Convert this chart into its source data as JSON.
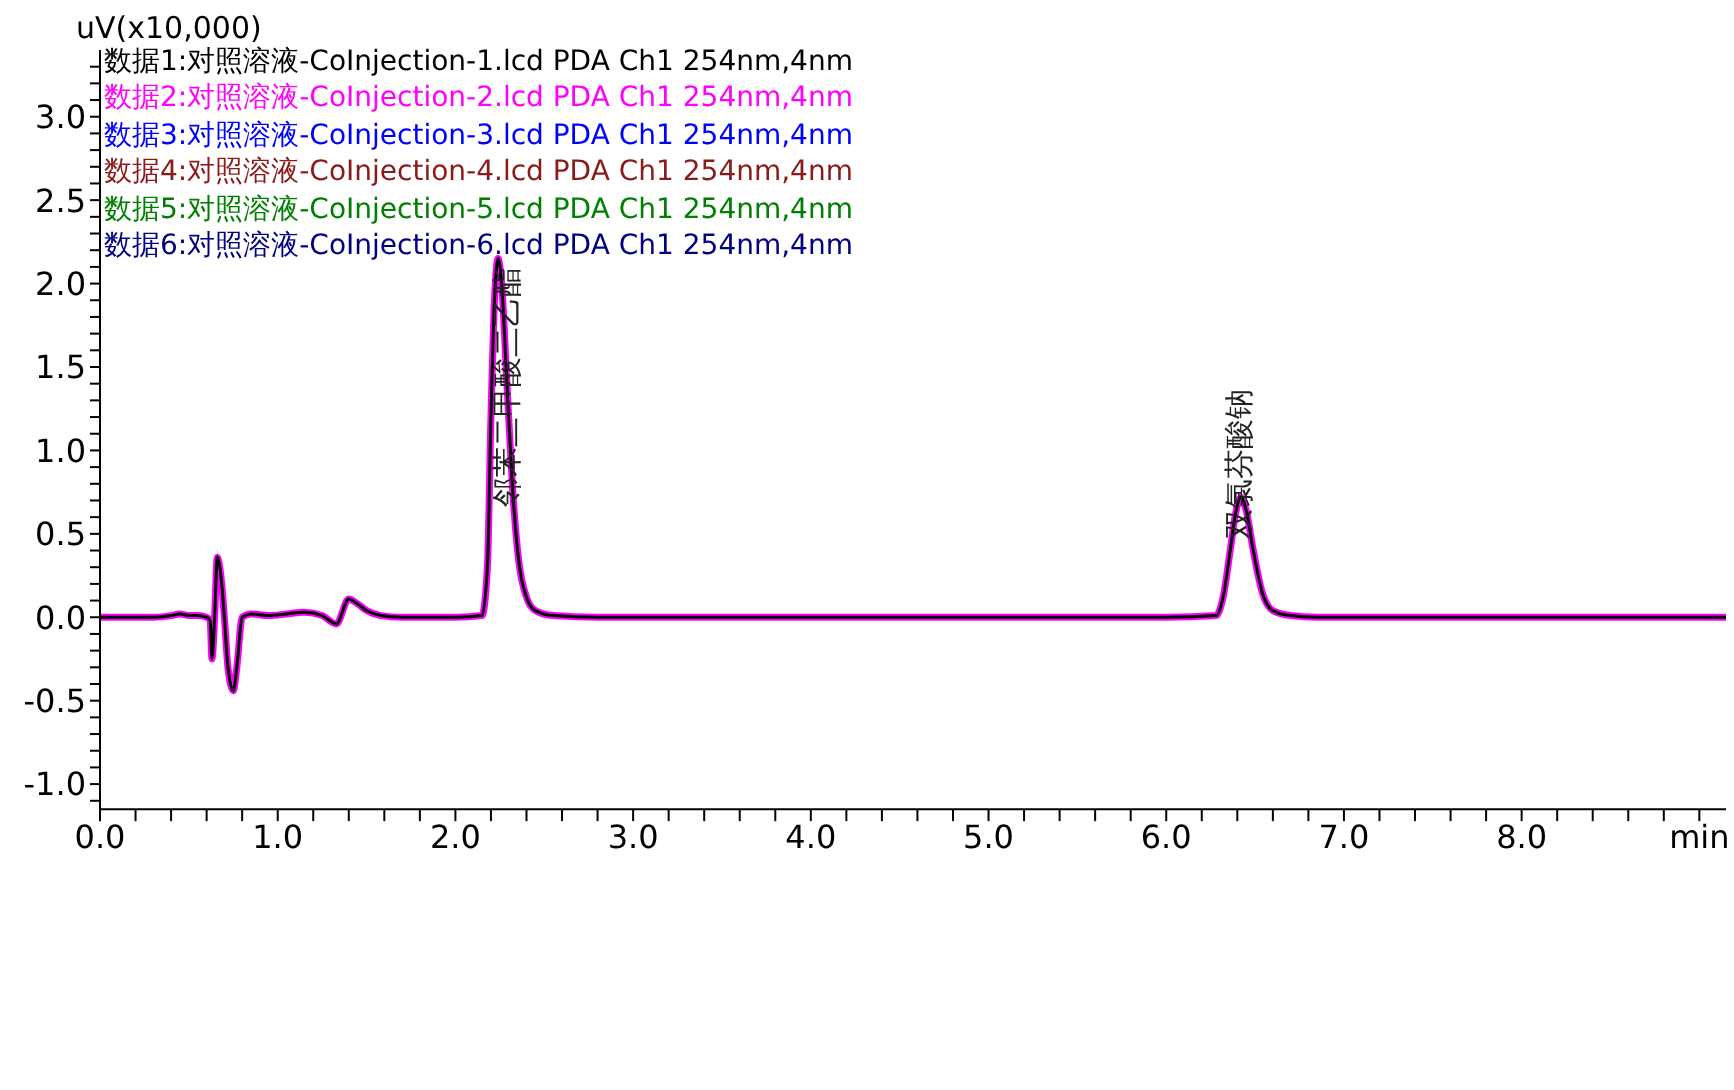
{
  "chart_data": {
    "type": "line",
    "ylabel": "uV(x10,000)",
    "legend": "top left",
    "marker": "none",
    "line_style": "solid",
    "grid": false,
    "annotations": [
      {
        "text": "邻苯二甲酸二乙酯",
        "x": 2.3,
        "y": 1.28
      },
      {
        "text": "双氯芬酸钠",
        "x": 6.42,
        "y": 0.72
      }
    ],
    "xlim": [
      0,
      9.15
    ],
    "ylim": [
      -1.15,
      3.4
    ],
    "xticks": [
      {
        "value": 0,
        "label": "0.0"
      },
      {
        "value": 0.2,
        "label": null
      },
      {
        "value": 0.4,
        "label": null
      },
      {
        "value": 0.6,
        "label": null
      },
      {
        "value": 0.8,
        "label": null
      },
      {
        "value": 1,
        "label": "1.0"
      },
      {
        "value": 1.2,
        "label": null
      },
      {
        "value": 1.4,
        "label": null
      },
      {
        "value": 1.6,
        "label": null
      },
      {
        "value": 1.8,
        "label": null
      },
      {
        "value": 2,
        "label": "2.0"
      },
      {
        "value": 2.2,
        "label": null
      },
      {
        "value": 2.4,
        "label": null
      },
      {
        "value": 2.6,
        "label": null
      },
      {
        "value": 2.8,
        "label": null
      },
      {
        "value": 3,
        "label": "3.0"
      },
      {
        "value": 3.2,
        "label": null
      },
      {
        "value": 3.4,
        "label": null
      },
      {
        "value": 3.6,
        "label": null
      },
      {
        "value": 3.8,
        "label": null
      },
      {
        "value": 4,
        "label": "4.0"
      },
      {
        "value": 4.2,
        "label": null
      },
      {
        "value": 4.4,
        "label": null
      },
      {
        "value": 4.6,
        "label": null
      },
      {
        "value": 4.8,
        "label": null
      },
      {
        "value": 5,
        "label": "5.0"
      },
      {
        "value": 5.2,
        "label": null
      },
      {
        "value": 5.4,
        "label": null
      },
      {
        "value": 5.6,
        "label": null
      },
      {
        "value": 5.8,
        "label": null
      },
      {
        "value": 6,
        "label": "6.0"
      },
      {
        "value": 6.2,
        "label": null
      },
      {
        "value": 6.4,
        "label": null
      },
      {
        "value": 6.6,
        "label": null
      },
      {
        "value": 6.8,
        "label": null
      },
      {
        "value": 7,
        "label": "7.0"
      },
      {
        "value": 7.2,
        "label": null
      },
      {
        "value": 7.4,
        "label": null
      },
      {
        "value": 7.6,
        "label": null
      },
      {
        "value": 7.8,
        "label": null
      },
      {
        "value": 8,
        "label": "8.0"
      },
      {
        "value": 8.2,
        "label": null
      },
      {
        "value": 8.4,
        "label": null
      },
      {
        "value": 8.6,
        "label": null
      },
      {
        "value": 8.8,
        "label": null
      },
      {
        "value": 9,
        "label": "min"
      }
    ],
    "yticks": [
      {
        "value": -1.1,
        "label": null
      },
      {
        "value": -1,
        "label": "-1.0"
      },
      {
        "value": -0.9,
        "label": null
      },
      {
        "value": -0.8,
        "label": null
      },
      {
        "value": -0.7,
        "label": null
      },
      {
        "value": -0.6,
        "label": null
      },
      {
        "value": -0.5,
        "label": "-0.5"
      },
      {
        "value": -0.4,
        "label": null
      },
      {
        "value": -0.3,
        "label": null
      },
      {
        "value": -0.2,
        "label": null
      },
      {
        "value": -0.1,
        "label": null
      },
      {
        "value": 0,
        "label": "0.0"
      },
      {
        "value": 0.1,
        "label": null
      },
      {
        "value": 0.2,
        "label": null
      },
      {
        "value": 0.3,
        "label": null
      },
      {
        "value": 0.4,
        "label": null
      },
      {
        "value": 0.5,
        "label": "0.5"
      },
      {
        "value": 0.6,
        "label": null
      },
      {
        "value": 0.7,
        "label": null
      },
      {
        "value": 0.8,
        "label": null
      },
      {
        "value": 0.9,
        "label": null
      },
      {
        "value": 1,
        "label": "1.0"
      },
      {
        "value": 1.1,
        "label": null
      },
      {
        "value": 1.2,
        "label": null
      },
      {
        "value": 1.3,
        "label": null
      },
      {
        "value": 1.4,
        "label": null
      },
      {
        "value": 1.5,
        "label": "1.5"
      },
      {
        "value": 1.6,
        "label": null
      },
      {
        "value": 1.7,
        "label": null
      },
      {
        "value": 1.8,
        "label": null
      },
      {
        "value": 1.9,
        "label": null
      },
      {
        "value": 2,
        "label": "2.0"
      },
      {
        "value": 2.1,
        "label": null
      },
      {
        "value": 2.2,
        "label": null
      },
      {
        "value": 2.3,
        "label": null
      },
      {
        "value": 2.4,
        "label": null
      },
      {
        "value": 2.5,
        "label": "2.5"
      },
      {
        "value": 2.6,
        "label": null
      },
      {
        "value": 2.7,
        "label": null
      },
      {
        "value": 2.8,
        "label": null
      },
      {
        "value": 2.9,
        "label": null
      },
      {
        "value": 3,
        "label": "3.0"
      },
      {
        "value": 3.1,
        "label": null
      },
      {
        "value": 3.2,
        "label": null
      },
      {
        "value": 3.3,
        "label": null
      }
    ],
    "x": [
      0,
      0.3,
      0.4,
      0.45,
      0.5,
      0.55,
      0.6,
      0.62,
      0.63,
      0.645,
      0.66,
      0.68,
      0.7,
      0.72,
      0.75,
      0.77,
      0.8,
      0.85,
      0.95,
      1.05,
      1.15,
      1.25,
      1.33,
      1.4,
      1.45,
      1.5,
      1.58,
      1.7,
      2,
      2.15,
      2.18,
      2.2,
      2.22,
      2.24,
      2.26,
      2.29,
      2.32,
      2.35,
      2.4,
      2.45,
      2.55,
      2.8,
      4,
      5,
      6,
      6.28,
      6.32,
      6.36,
      6.39,
      6.42,
      6.45,
      6.49,
      6.54,
      6.6,
      6.7,
      6.85,
      8,
      9.15
    ],
    "series": [
      {
        "name": "数据1:对照溶液-CoInjection-1.lcd PDA Ch1 254nm,4nm",
        "color": "#000000",
        "values": [
          0,
          0,
          0.01,
          0.02,
          0.01,
          0.01,
          0,
          -0.02,
          -0.25,
          0,
          0.36,
          0.25,
          0,
          -0.3,
          -0.44,
          -0.3,
          0,
          0.02,
          0.01,
          0.02,
          0.03,
          0.01,
          -0.04,
          0.11,
          0.08,
          0.04,
          0.01,
          0,
          0,
          0.01,
          0.3,
          1.2,
          1.9,
          2.15,
          2,
          1.4,
          0.8,
          0.4,
          0.12,
          0.04,
          0.01,
          0,
          0,
          0,
          0,
          0.01,
          0.12,
          0.4,
          0.62,
          0.72,
          0.64,
          0.4,
          0.15,
          0.04,
          0.01,
          0,
          0,
          0
        ]
      },
      {
        "name": "数据2:对照溶液-CoInjection-2.lcd PDA Ch1 254nm,4nm",
        "color": "#ff00ff",
        "values": [
          0,
          0,
          0.01,
          0.02,
          0.01,
          0.01,
          0,
          -0.02,
          -0.25,
          0,
          0.36,
          0.25,
          0,
          -0.3,
          -0.44,
          -0.3,
          0,
          0.02,
          0.01,
          0.02,
          0.03,
          0.01,
          -0.04,
          0.11,
          0.08,
          0.04,
          0.01,
          0,
          0,
          0.01,
          0.3,
          1.2,
          1.9,
          2.15,
          2,
          1.4,
          0.8,
          0.4,
          0.12,
          0.04,
          0.01,
          0,
          0,
          0,
          0,
          0.01,
          0.12,
          0.4,
          0.62,
          0.72,
          0.64,
          0.4,
          0.15,
          0.04,
          0.01,
          0,
          0,
          0
        ]
      },
      {
        "name": "数据3:对照溶液-CoInjection-3.lcd PDA Ch1 254nm,4nm",
        "color": "#0000ff",
        "values": [
          null,
          null,
          null,
          null,
          null,
          null,
          null,
          null,
          null,
          null,
          null,
          null,
          null,
          null,
          null,
          null,
          null,
          null,
          null,
          null,
          null,
          null,
          null,
          null,
          null,
          null,
          null,
          null,
          null,
          null,
          null,
          null,
          null,
          null,
          null,
          null,
          null,
          null,
          null,
          null,
          null,
          null,
          null,
          null,
          null,
          null,
          null,
          null,
          null,
          null,
          null,
          null,
          null,
          null,
          null,
          null,
          null,
          null
        ]
      },
      {
        "name": "数据4:对照溶液-CoInjection-4.lcd PDA Ch1 254nm,4nm",
        "color": "#8b1a1a",
        "values": [
          null,
          null,
          null,
          null,
          null,
          null,
          null,
          null,
          null,
          null,
          null,
          null,
          null,
          null,
          null,
          null,
          null,
          null,
          null,
          null,
          null,
          null,
          null,
          null,
          null,
          null,
          null,
          null,
          null,
          null,
          null,
          null,
          null,
          null,
          null,
          null,
          null,
          null,
          null,
          null,
          null,
          null,
          null,
          null,
          null,
          null,
          null,
          null,
          null,
          null,
          null,
          null,
          null,
          null,
          null,
          null,
          null,
          null
        ]
      },
      {
        "name": "数据5:对照溶液-CoInjection-5.lcd PDA Ch1 254nm,4nm",
        "color": "#008000",
        "values": [
          null,
          null,
          null,
          null,
          null,
          null,
          null,
          null,
          null,
          null,
          null,
          null,
          null,
          null,
          null,
          null,
          null,
          null,
          null,
          null,
          null,
          null,
          null,
          null,
          null,
          null,
          null,
          null,
          null,
          null,
          null,
          null,
          null,
          null,
          null,
          null,
          null,
          null,
          null,
          null,
          null,
          null,
          null,
          null,
          null,
          null,
          null,
          null,
          null,
          null,
          null,
          null,
          null,
          null,
          null,
          null,
          null,
          null
        ]
      },
      {
        "name": "数据6:对照溶液-CoInjection-6.lcd PDA Ch1 254nm,4nm",
        "color": "#000080",
        "values": [
          null,
          null,
          null,
          null,
          null,
          null,
          null,
          null,
          null,
          null,
          null,
          null,
          null,
          null,
          null,
          null,
          null,
          null,
          null,
          null,
          null,
          null,
          null,
          null,
          null,
          null,
          null,
          null,
          null,
          null,
          null,
          null,
          null,
          null,
          null,
          null,
          null,
          null,
          null,
          null,
          null,
          null,
          null,
          null,
          null,
          null,
          null,
          null,
          null,
          null,
          null,
          null,
          null,
          null,
          null,
          null,
          null,
          null
        ]
      }
    ]
  }
}
